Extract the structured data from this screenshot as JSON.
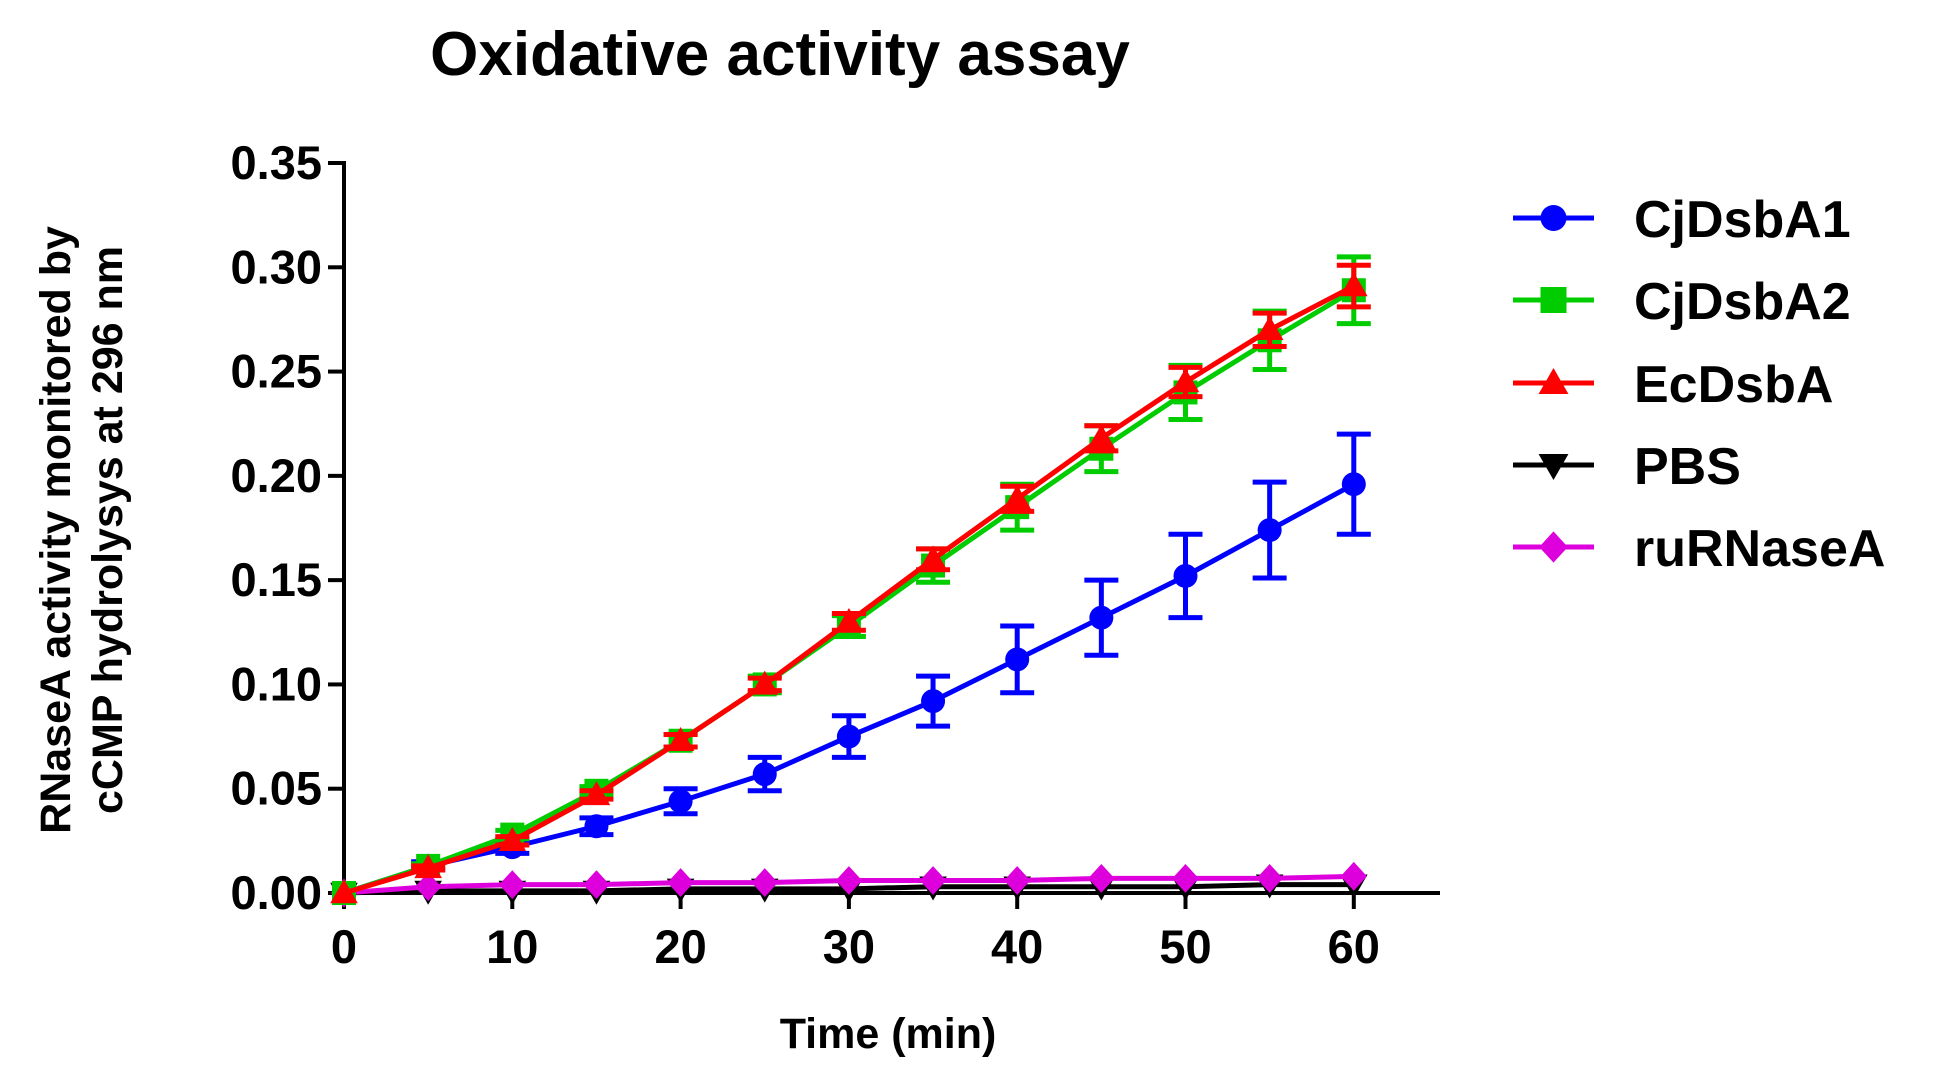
{
  "chart_data": {
    "type": "line",
    "title": "Oxidative activity assay",
    "xlabel": "Time (min)",
    "ylabel_lines": [
      "RNaseA activity monitored by",
      "cCMP hydrolysys at 296 nm"
    ],
    "xlim": [
      0,
      65
    ],
    "ylim": [
      0,
      0.35
    ],
    "x_ticks": [
      0,
      10,
      20,
      30,
      40,
      50,
      60
    ],
    "x_tick_labels": [
      "0",
      "10",
      "20",
      "30",
      "40",
      "50",
      "60"
    ],
    "y_ticks": [
      0,
      0.05,
      0.1,
      0.15,
      0.2,
      0.25,
      0.3,
      0.35
    ],
    "y_tick_labels": [
      "0.00",
      "0.05",
      "0.10",
      "0.15",
      "0.20",
      "0.25",
      "0.30",
      "0.35"
    ],
    "legend_position": "right",
    "x": [
      0,
      5,
      10,
      15,
      20,
      25,
      30,
      35,
      40,
      45,
      50,
      55,
      60
    ],
    "series": [
      {
        "name": "CjDsbA1",
        "color": "#0000ff",
        "marker": "circle",
        "values": [
          0.0,
          0.013,
          0.022,
          0.032,
          0.044,
          0.057,
          0.075,
          0.092,
          0.112,
          0.132,
          0.152,
          0.174,
          0.196
        ],
        "errors": [
          0.0,
          0.002,
          0.003,
          0.004,
          0.006,
          0.008,
          0.01,
          0.012,
          0.016,
          0.018,
          0.02,
          0.023,
          0.024
        ]
      },
      {
        "name": "CjDsbA2",
        "color": "#00cc00",
        "marker": "square",
        "values": [
          0.0,
          0.013,
          0.028,
          0.049,
          0.073,
          0.1,
          0.128,
          0.157,
          0.185,
          0.213,
          0.24,
          0.265,
          0.289
        ],
        "errors": [
          0.0,
          0.001,
          0.002,
          0.002,
          0.003,
          0.004,
          0.005,
          0.008,
          0.011,
          0.011,
          0.013,
          0.014,
          0.016
        ]
      },
      {
        "name": "EcDsbA",
        "color": "#ff0000",
        "marker": "triangle-up",
        "values": [
          0.0,
          0.012,
          0.025,
          0.047,
          0.073,
          0.1,
          0.13,
          0.16,
          0.189,
          0.218,
          0.245,
          0.27,
          0.291
        ],
        "errors": [
          0.0,
          0.001,
          0.002,
          0.002,
          0.003,
          0.003,
          0.004,
          0.005,
          0.006,
          0.006,
          0.007,
          0.008,
          0.01
        ]
      },
      {
        "name": "PBS",
        "color": "#000000",
        "marker": "triangle-down",
        "values": [
          0.0,
          0.001,
          0.001,
          0.001,
          0.002,
          0.002,
          0.002,
          0.003,
          0.003,
          0.003,
          0.003,
          0.004,
          0.004
        ],
        "errors": [
          0,
          0,
          0,
          0,
          0,
          0,
          0,
          0,
          0,
          0,
          0,
          0,
          0
        ]
      },
      {
        "name": "ruRNaseA",
        "color": "#dd00dd",
        "marker": "diamond",
        "values": [
          0.0,
          0.003,
          0.004,
          0.004,
          0.005,
          0.005,
          0.006,
          0.006,
          0.006,
          0.007,
          0.007,
          0.007,
          0.008
        ],
        "errors": [
          0,
          0,
          0,
          0,
          0,
          0,
          0,
          0,
          0,
          0,
          0,
          0,
          0
        ]
      }
    ]
  }
}
